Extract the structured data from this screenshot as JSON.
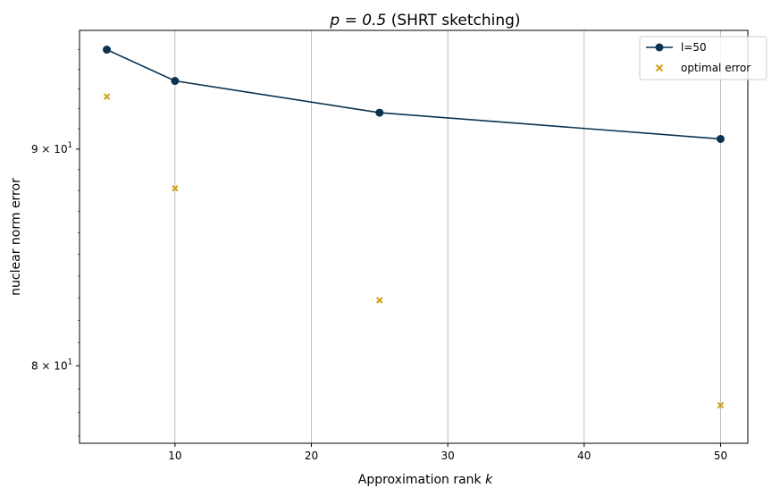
{
  "chart_data": {
    "type": "line",
    "title": "p = 0.5 (SHRT sketching)",
    "title_math": "p = 0.5",
    "title_rest": " (SHRT sketching)",
    "xlabel": "Approximation rank",
    "xlabel_math": "k",
    "ylabel": "nuclear norm error",
    "xlim": [
      3,
      52
    ],
    "ylim": [
      76.7,
      96.0
    ],
    "yscale": "log",
    "grid": "x-major",
    "legend_placement": "top-right",
    "xticks": [
      10,
      20,
      30,
      40,
      50
    ],
    "yticks": [
      {
        "value": 90,
        "base": "9 × 10",
        "exp": "1"
      },
      {
        "value": 80,
        "base": "8 × 10",
        "exp": "1"
      }
    ],
    "series": [
      {
        "name": "l=50",
        "kind": "line",
        "marker": "circle",
        "color": "#0b3350",
        "x": [
          5,
          10,
          25,
          50
        ],
        "y": [
          95.0,
          93.4,
          91.8,
          90.5
        ]
      },
      {
        "name": "optimal error",
        "kind": "scatter",
        "marker": "x",
        "color": "#d4a017",
        "x": [
          5,
          10,
          25,
          50
        ],
        "y": [
          92.6,
          88.1,
          82.9,
          78.3
        ]
      }
    ]
  }
}
